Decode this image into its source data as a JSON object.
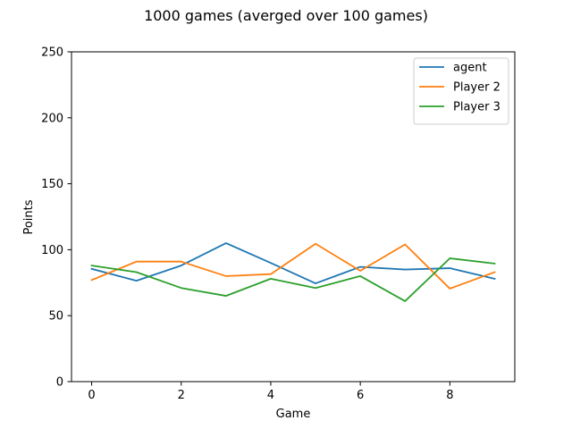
{
  "chart_data": {
    "type": "line",
    "title": "1000 games (averged over 100 games)",
    "xlabel": "Game",
    "ylabel": "Points",
    "xlim": [
      -0.45,
      9.45
    ],
    "ylim": [
      0,
      250
    ],
    "xticks": [
      0,
      2,
      4,
      6,
      8
    ],
    "yticks": [
      0,
      50,
      100,
      150,
      200,
      250
    ],
    "x": [
      0,
      1,
      2,
      3,
      4,
      5,
      6,
      7,
      8,
      9
    ],
    "grid": false,
    "legend_position": "top-right",
    "series": [
      {
        "name": "agent",
        "color": "#1f77b4",
        "values": [
          85.5,
          76.5,
          88,
          105,
          90,
          74.5,
          87,
          85,
          86,
          78
        ]
      },
      {
        "name": "Player 2",
        "color": "#ff7f0e",
        "values": [
          77,
          91,
          91,
          80,
          81.5,
          104.5,
          84,
          104,
          70.5,
          83
        ]
      },
      {
        "name": "Player 3",
        "color": "#2ca02c",
        "values": [
          88,
          83,
          71,
          65,
          78,
          71,
          80,
          61,
          93.5,
          89.5
        ]
      }
    ]
  }
}
